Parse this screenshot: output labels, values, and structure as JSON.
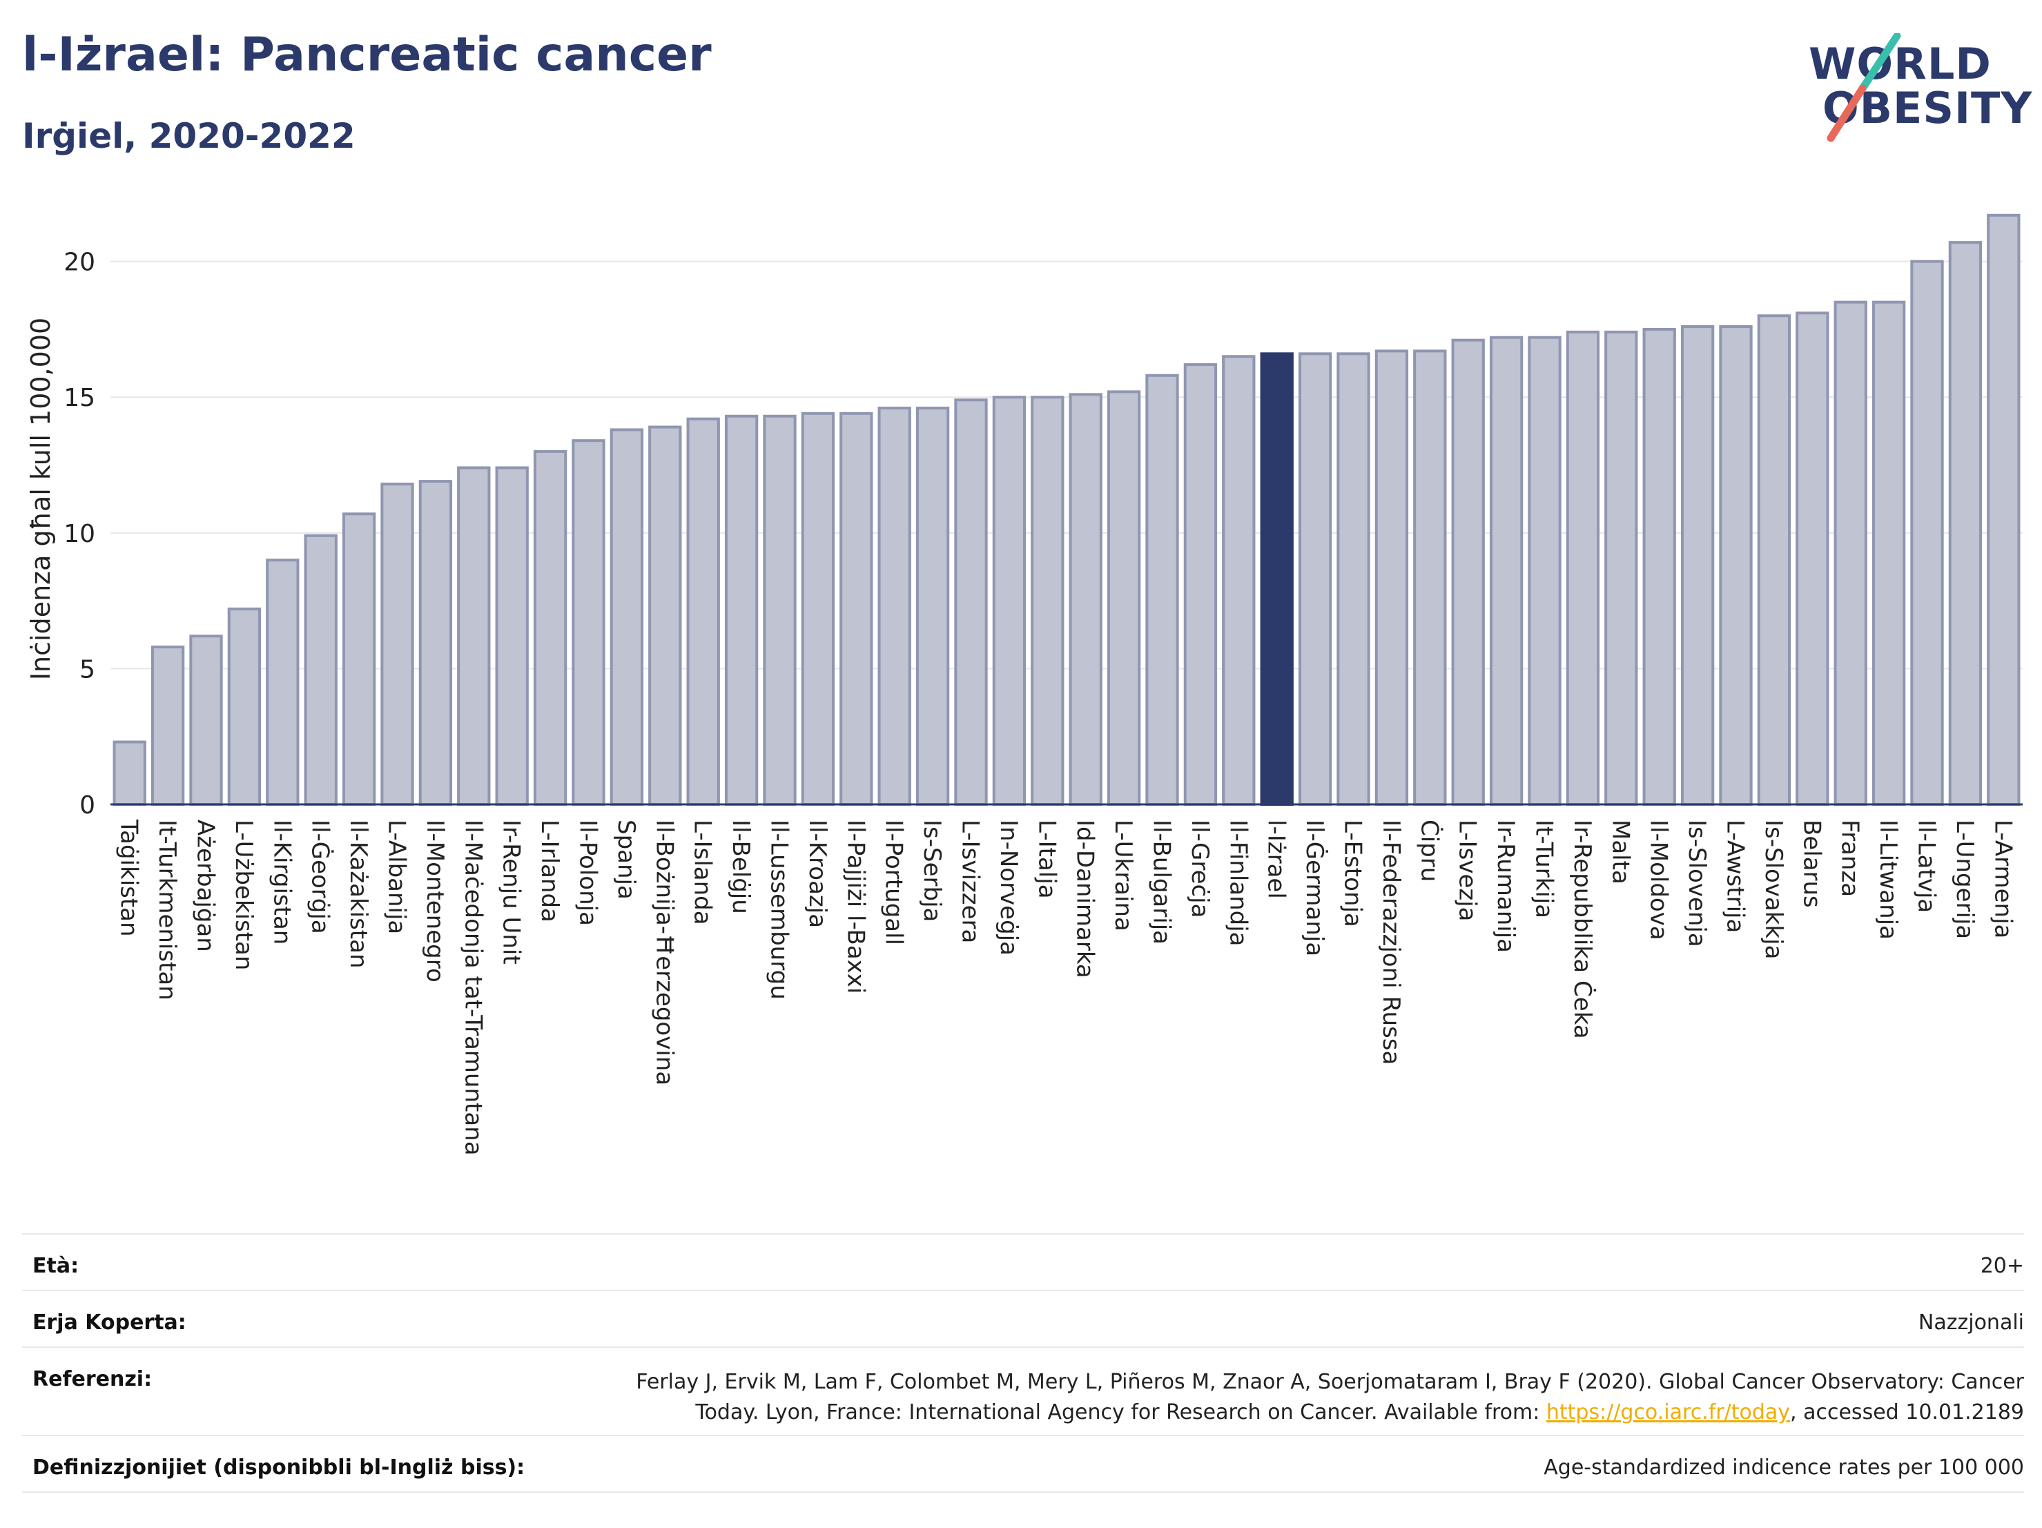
{
  "header": {
    "title": "l-Iżrael: Pancreatic cancer",
    "subtitle": "Irġiel, 2020-2022"
  },
  "logo": {
    "line1": "WORLD",
    "line2": "OBESITY"
  },
  "colors": {
    "bar": "#bfc3d2",
    "bar_border": "#8f96b0",
    "highlight": "#2b3a6b",
    "grid": "#e6e6e6",
    "text": "#2b3a6b"
  },
  "chart_data": {
    "type": "bar",
    "ylabel": "Inċidenza għal kull 100,000",
    "ylim": [
      0,
      22
    ],
    "yticks": [
      0,
      5,
      10,
      15,
      20
    ],
    "grid": true,
    "highlight": "l-Iżrael",
    "categories": [
      "Taġikistan",
      "It-Turkmenistan",
      "Ażerbajġan",
      "L-Użbekistan",
      "Il-Kirgistan",
      "Il-Ġeorġja",
      "Il-Każakistan",
      "L-Albanija",
      "Il-Montenegro",
      "Il-Maċedonja tat-Tramuntana",
      "Ir-Renju Unit",
      "L-Irlanda",
      "Il-Polonja",
      "Spanja",
      "Il-Bożnija-Ħerzegovina",
      "L-Islanda",
      "Il-Belġju",
      "Il-Lussemburgu",
      "Il-Kroazja",
      "Il-Pajjiżi l-Baxxi",
      "Il-Portugall",
      "Is-Serbja",
      "L-Isvizzera",
      "In-Norveġja",
      "L-Italja",
      "Id-Danimarka",
      "L-Ukraina",
      "Il-Bulgarija",
      "Il-Greċja",
      "Il-Finlandja",
      "l-Iżrael",
      "Il-Ġermanja",
      "L-Estonja",
      "Il-Federazzjoni Russa",
      "Ċipru",
      "L-Isvezja",
      "Ir-Rumanija",
      "It-Turkija",
      "Ir-Repubblika Ċeka",
      "Malta",
      "Il-Moldova",
      "Is-Slovenja",
      "L-Awstrija",
      "Is-Slovakkja",
      "Belarus",
      "Franza",
      "Il-Litwanja",
      "Il-Latvja",
      "L-Ungerija",
      "L-Armenja"
    ],
    "values": [
      2.3,
      5.8,
      6.2,
      7.2,
      9.0,
      9.9,
      10.7,
      11.8,
      11.9,
      12.4,
      12.4,
      13.0,
      13.4,
      13.8,
      13.9,
      14.2,
      14.3,
      14.3,
      14.4,
      14.4,
      14.6,
      14.6,
      14.9,
      15.0,
      15.0,
      15.1,
      15.2,
      15.8,
      16.2,
      16.5,
      16.6,
      16.6,
      16.6,
      16.7,
      16.7,
      17.1,
      17.2,
      17.2,
      17.4,
      17.4,
      17.5,
      17.6,
      17.6,
      18.0,
      18.1,
      18.5,
      18.5,
      20.0,
      20.7,
      21.7
    ]
  },
  "meta": {
    "age_label": "Età:",
    "age_value": "20+",
    "area_label": "Erja Koperta:",
    "area_value": "Nazzjonali",
    "ref_label": "Referenzi:",
    "ref_line1": "Ferlay J, Ervik M, Lam F, Colombet M, Mery L, Piñeros M, Znaor A, Soerjomataram I, Bray F (2020). Global Cancer Observatory: Cancer",
    "ref_line2_pre": "Today. Lyon, France: International Agency for Research on Cancer. Available from: ",
    "ref_link": "https://gco.iarc.fr/today",
    "ref_line2_post": ", accessed 10.01.2189",
    "def_label": "Definizzjonijiet (disponibbli bl-Ingliż biss):",
    "def_value": "Age-standardized indicence rates per 100 000"
  }
}
